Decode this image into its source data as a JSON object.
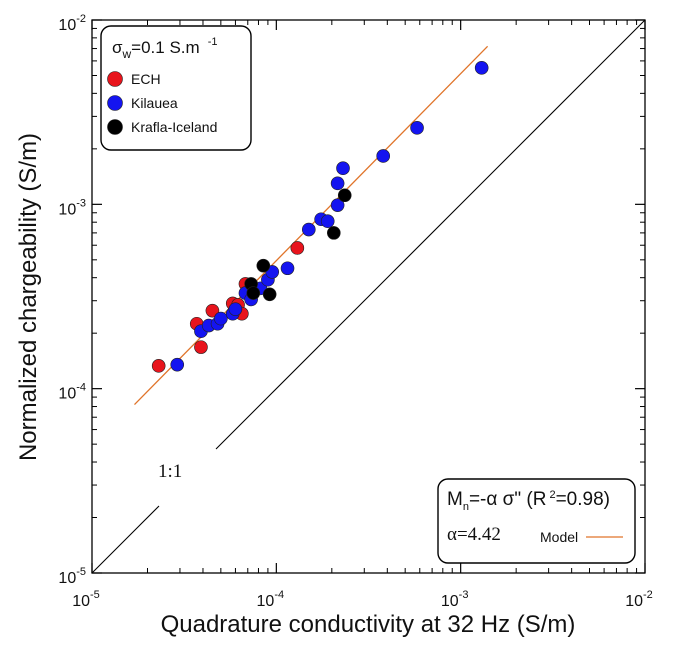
{
  "chart_data": {
    "type": "scatter",
    "xlabel": "Quadrature conductivity at 32 Hz (S/m)",
    "ylabel": "Normalized chargeability (S/m)",
    "xscale": "log",
    "yscale": "log",
    "xlim": [
      1e-05,
      0.01
    ],
    "ylim": [
      1e-05,
      0.01
    ],
    "x_ticks": [
      {
        "base": "10",
        "exp": "-5"
      },
      {
        "base": "10",
        "exp": "-4"
      },
      {
        "base": "10",
        "exp": "-3"
      },
      {
        "base": "10",
        "exp": "-2"
      }
    ],
    "y_ticks": [
      {
        "base": "10",
        "exp": "-5"
      },
      {
        "base": "10",
        "exp": "-4"
      },
      {
        "base": "10",
        "exp": "-3"
      },
      {
        "base": "10",
        "exp": "-2"
      }
    ],
    "legend": {
      "placement": "top-left",
      "header_sigma": "σ",
      "header_sub": "w",
      "header_value": "=0.1 S.m",
      "header_exp": "-1"
    },
    "series": [
      {
        "name": "ECH",
        "color": "#e8141c",
        "points": [
          [
            2.3e-05,
            0.000133
          ],
          [
            3.7e-05,
            0.000225
          ],
          [
            3.9e-05,
            0.000168
          ],
          [
            4.5e-05,
            0.000265
          ],
          [
            5.8e-05,
            0.00029
          ],
          [
            6.2e-05,
            0.000285
          ],
          [
            6.5e-05,
            0.000255
          ],
          [
            6.8e-05,
            0.00037
          ],
          [
            0.00013,
            0.00058
          ]
        ]
      },
      {
        "name": "Kilauea",
        "color": "#1414f0",
        "points": [
          [
            2.9e-05,
            0.000135
          ],
          [
            3.9e-05,
            0.000205
          ],
          [
            4.3e-05,
            0.00022
          ],
          [
            4.8e-05,
            0.000225
          ],
          [
            5e-05,
            0.00024
          ],
          [
            5.8e-05,
            0.000255
          ],
          [
            6e-05,
            0.00027
          ],
          [
            6.8e-05,
            0.00033
          ],
          [
            7.3e-05,
            0.000305
          ],
          [
            8.2e-05,
            0.00035
          ],
          [
            9e-05,
            0.00039
          ],
          [
            9.5e-05,
            0.00043
          ],
          [
            0.000115,
            0.00045
          ],
          [
            0.00015,
            0.00073
          ],
          [
            0.000175,
            0.00083
          ],
          [
            0.00019,
            0.00081
          ],
          [
            0.000215,
            0.00099
          ],
          [
            0.000215,
            0.0013
          ],
          [
            0.00023,
            0.00157
          ],
          [
            0.00038,
            0.00183
          ],
          [
            0.00058,
            0.0026
          ],
          [
            0.0013,
            0.0055
          ]
        ]
      },
      {
        "name": "Krafla-Iceland",
        "color": "#000000",
        "points": [
          [
            7.3e-05,
            0.00037
          ],
          [
            7.5e-05,
            0.00033
          ],
          [
            8.5e-05,
            0.000465
          ],
          [
            9.2e-05,
            0.000325
          ],
          [
            0.000205,
            0.0007
          ],
          [
            0.000235,
            0.00112
          ]
        ]
      }
    ],
    "model_line": {
      "name": "Model",
      "color": "#e0742a",
      "x": [
        1.7e-05,
        0.0014
      ],
      "y": [
        8.2e-05,
        0.0072
      ]
    },
    "reference_line": {
      "label": "1:1",
      "color": "#000000",
      "x": [
        1e-05,
        0.01
      ],
      "y": [
        1e-05,
        0.01
      ]
    },
    "fit_box": {
      "placement": "bottom-right",
      "m": "M",
      "m_sub": "n",
      "eq": "=-α σ\" (R",
      "r_exp": "2",
      "r_val": "=0.98)",
      "alpha": "α=4.42",
      "model_label": "Model"
    }
  }
}
